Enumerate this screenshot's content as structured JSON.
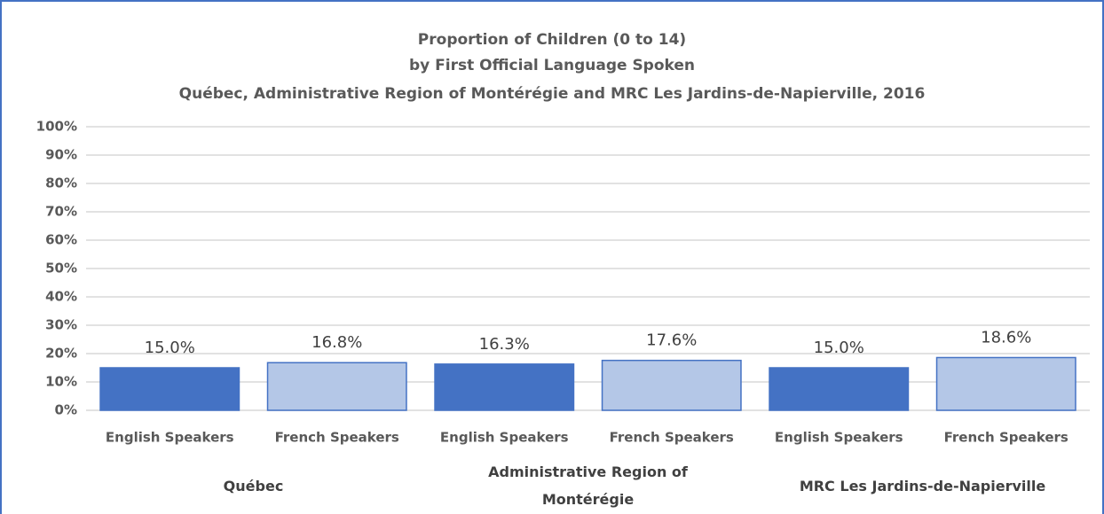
{
  "chart_data": {
    "type": "bar",
    "title": [
      "Proportion of Children (0 to 14)",
      "by First Official Language Spoken",
      "Québec, Administrative Region of Montérégie and MRC Les Jardins-de-Napierville, 2016"
    ],
    "categories": [
      "English Speakers",
      "French Speakers",
      "English Speakers",
      "French Speakers",
      "English Speakers",
      "French Speakers"
    ],
    "groups": [
      "Québec",
      "Administrative Region of Montérégie",
      "MRC Les Jardins-de-Napierville"
    ],
    "values": [
      15.0,
      16.8,
      16.3,
      17.6,
      15.0,
      18.6
    ],
    "value_labels": [
      "15.0%",
      "16.8%",
      "16.3%",
      "17.6%",
      "15.0%",
      "18.6%"
    ],
    "colors": [
      "#4472c4",
      "#b4c7e7",
      "#4472c4",
      "#b4c7e7",
      "#4472c4",
      "#b4c7e7"
    ],
    "ylim": [
      0,
      100
    ],
    "yticks": [
      {
        "value": 0,
        "label": "0%"
      },
      {
        "value": 10,
        "label": "10%"
      },
      {
        "value": 20,
        "label": "20%"
      },
      {
        "value": 30,
        "label": "30%"
      },
      {
        "value": 40,
        "label": "40%"
      },
      {
        "value": 50,
        "label": "50%"
      },
      {
        "value": 60,
        "label": "60%"
      },
      {
        "value": 70,
        "label": "70%"
      },
      {
        "value": 80,
        "label": "80%"
      },
      {
        "value": 90,
        "label": "90%"
      },
      {
        "value": 100,
        "label": "100%"
      }
    ],
    "grid": true
  }
}
